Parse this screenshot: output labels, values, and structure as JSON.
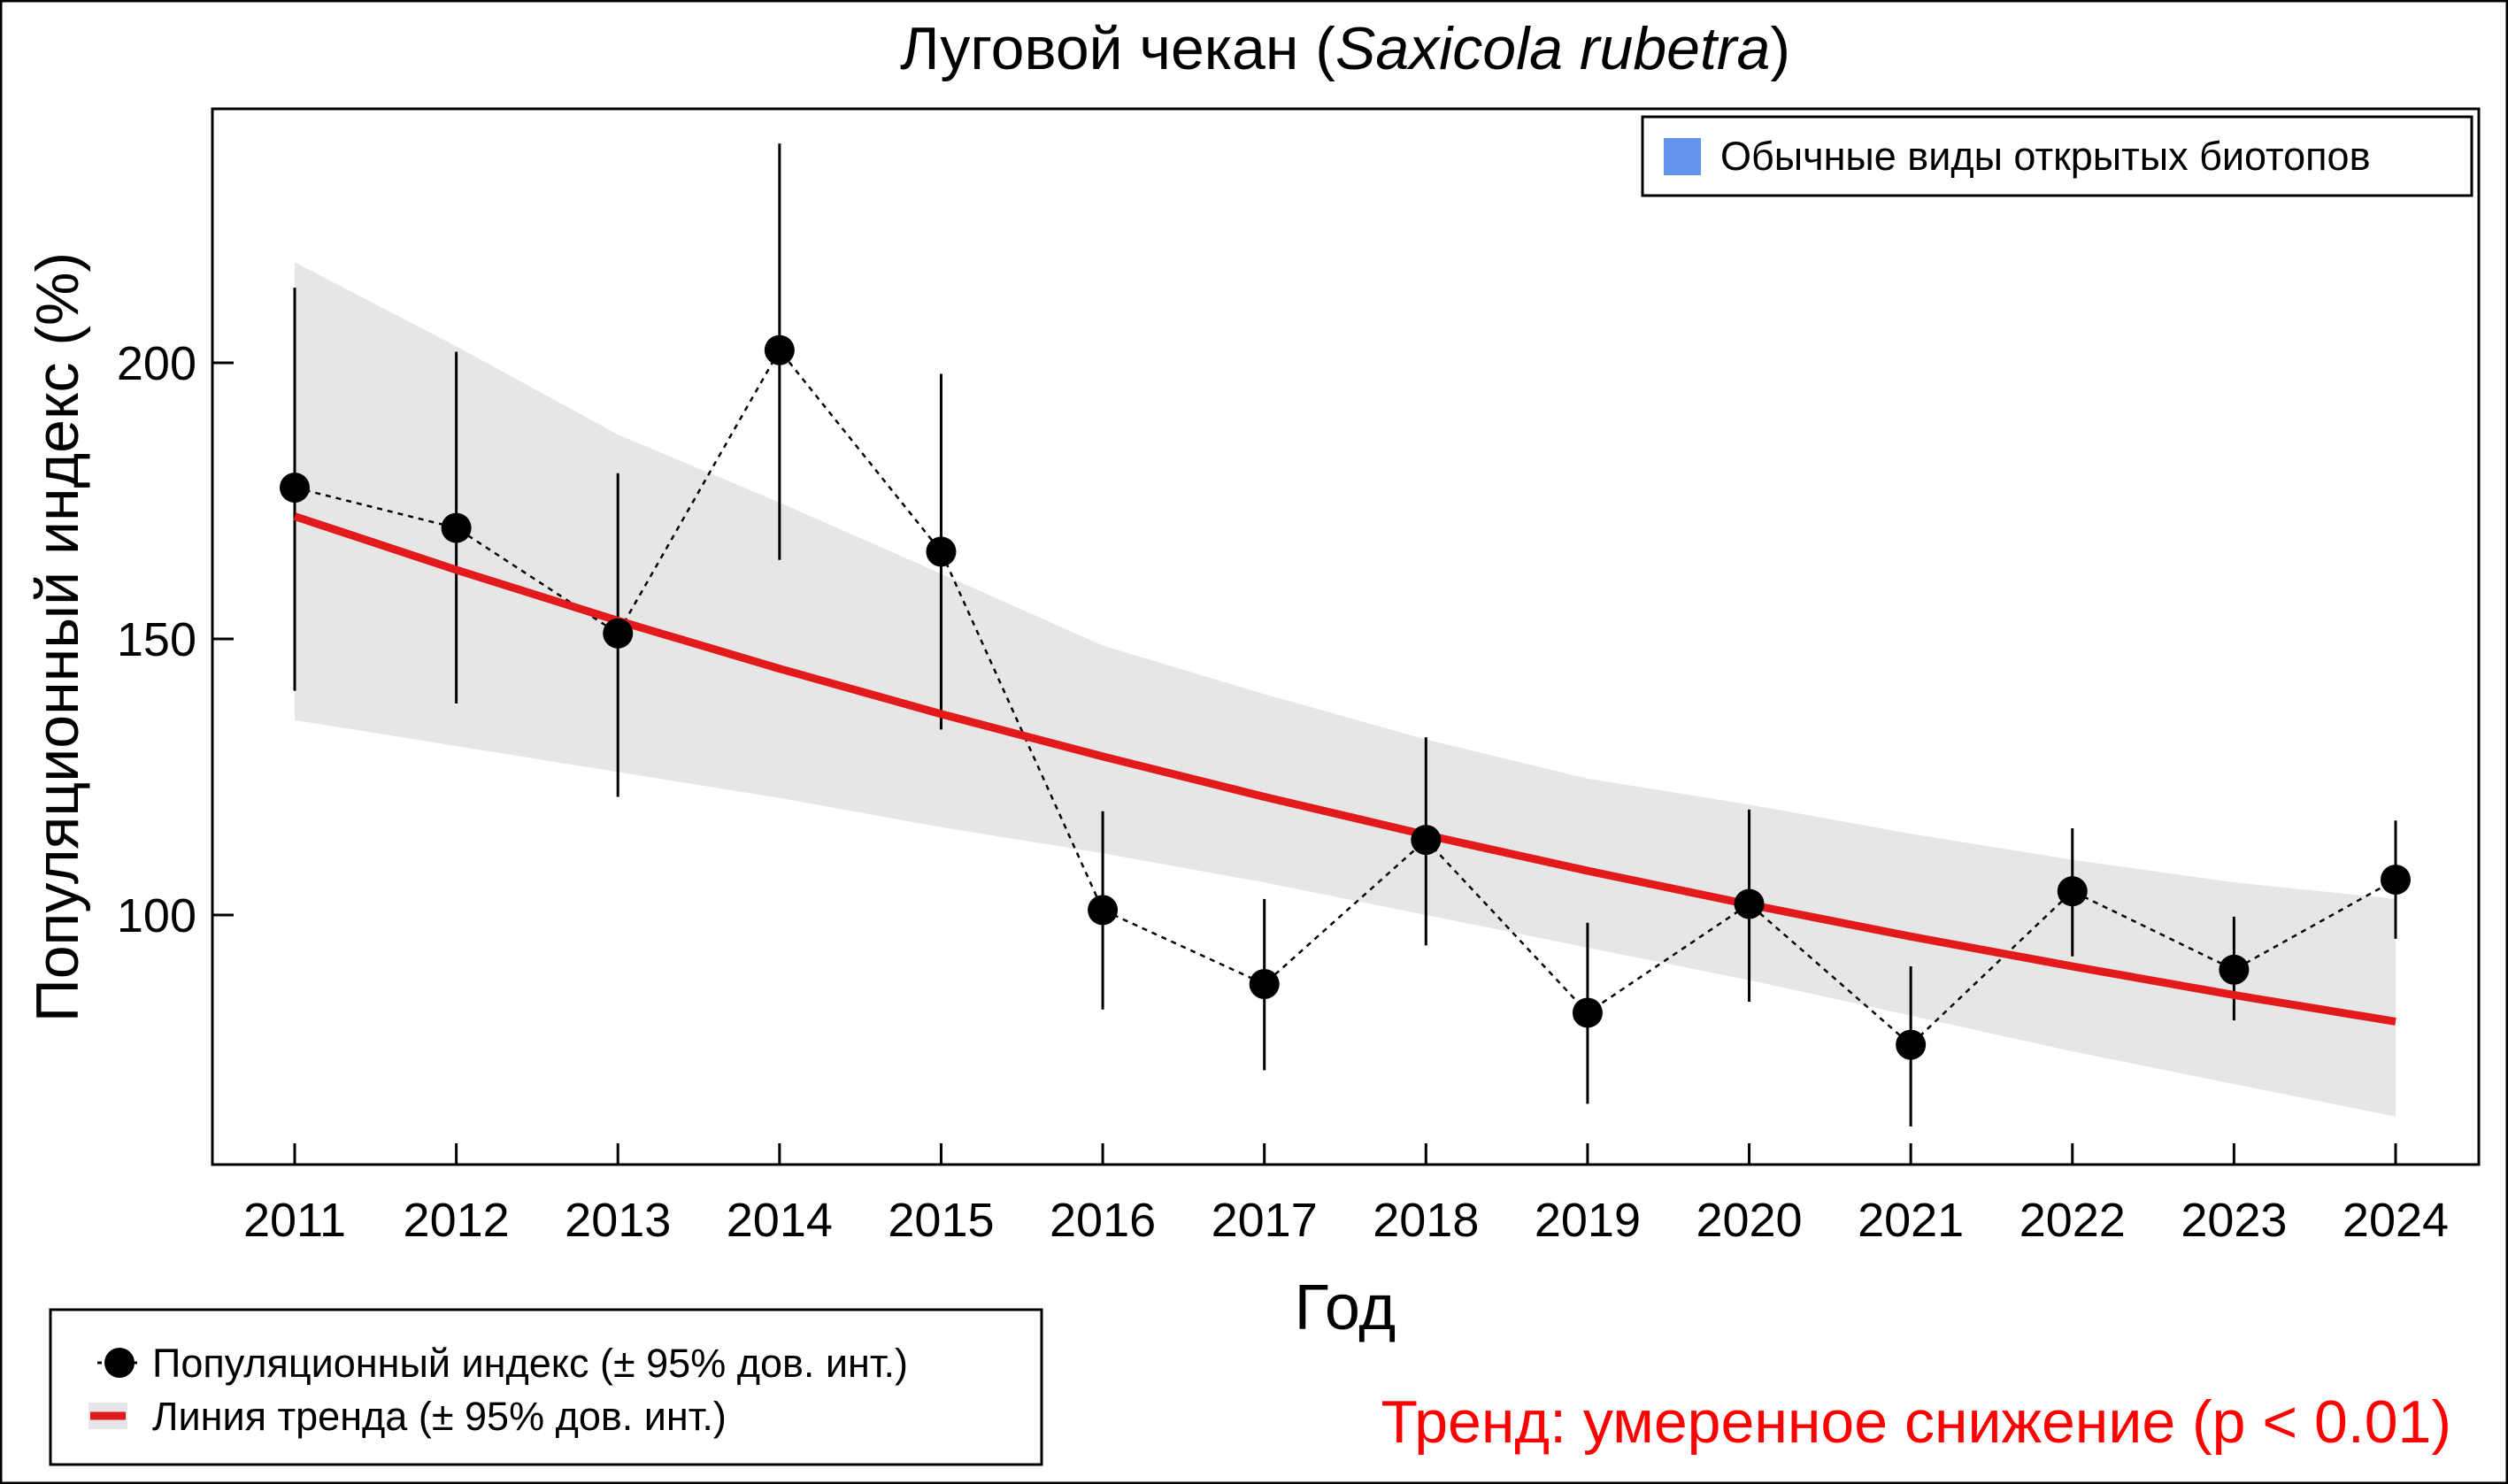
{
  "chart_data": {
    "type": "line",
    "title_plain": "Луговой чекан (",
    "title_italic": "Saxicola rubetra",
    "title_close": ")",
    "xlabel": "Год",
    "ylabel": "Популяционный индекс (%)",
    "ylim": [
      55,
      245
    ],
    "yticks": [
      100,
      150,
      200
    ],
    "x": [
      2011,
      2012,
      2013,
      2014,
      2015,
      2016,
      2017,
      2018,
      2019,
      2020,
      2021,
      2022,
      2023,
      2024
    ],
    "series": [
      {
        "name": "Популяционный индекс (± 95% дов. инт.)",
        "values": [
          177.4,
          170.1,
          151.0,
          202.3,
          165.8,
          100.9,
          87.5,
          113.6,
          82.3,
          102.0,
          76.5,
          104.3,
          90.1,
          106.4
        ],
        "ci_upper": [
          213.6,
          202.0,
          180.0,
          239.7,
          198.0,
          118.8,
          102.9,
          132.2,
          98.6,
          119.1,
          90.7,
          115.7,
          99.7,
          117.1
        ],
        "ci_lower": [
          140.6,
          138.3,
          121.4,
          164.3,
          133.6,
          82.9,
          71.9,
          94.5,
          65.8,
          84.3,
          61.7,
          92.5,
          80.9,
          95.7
        ]
      },
      {
        "name": "Линия тренда (± 95% дов. инт.)",
        "values": [
          172.2,
          162.5,
          153.3,
          144.6,
          136.4,
          128.7,
          121.4,
          114.5,
          108.0,
          101.9,
          96.1,
          90.7,
          85.5,
          80.7
        ],
        "ci_upper": [
          218.2,
          203.0,
          187.0,
          174.7,
          161.8,
          148.8,
          140.0,
          131.8,
          124.7,
          120.0,
          114.7,
          110.0,
          105.9,
          102.9
        ],
        "ci_lower": [
          135.3,
          130.6,
          125.9,
          121.2,
          115.9,
          111.2,
          105.9,
          100.0,
          94.1,
          88.2,
          81.8,
          75.3,
          69.4,
          63.5
        ]
      }
    ],
    "group_legend": "Обычные виды открытых биотопов",
    "group_color": "#6495ED",
    "trend_text": "Тренд: умеренное снижение (p < 0.01)",
    "trend_color": "#FF0000",
    "line_color": "#E31A1C",
    "band_color": "#E6E6E6",
    "legend_placement": "bottom-left"
  }
}
